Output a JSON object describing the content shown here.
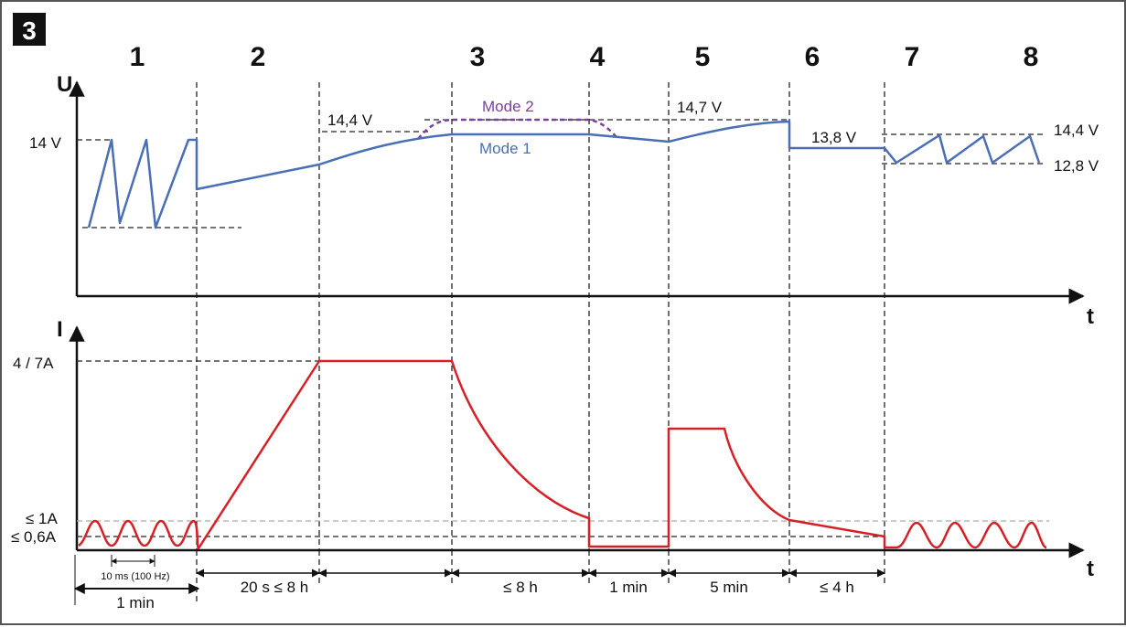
{
  "figure_number": "3",
  "phase_labels": [
    "1",
    "2",
    "3",
    "4",
    "5",
    "6",
    "7",
    "8"
  ],
  "voltage_axis_label": "U",
  "current_axis_label": "I",
  "time_axis_label": "t",
  "voltage_labels": {
    "v14": "14 V",
    "v144": "14,4 V",
    "v147": "14,7 V",
    "v138": "13,8 V",
    "v144_right": "14,4 V",
    "v128_right": "12,8 V",
    "mode1": "Mode 1",
    "mode2": "Mode 2"
  },
  "current_labels": {
    "max": "4 / 7A",
    "le1": "≤ 1A",
    "le06": "≤ 0,6A"
  },
  "durations": {
    "pulse": "10 ms (100 Hz)",
    "p1": "1 min",
    "p2": "20 s ≤ 8 h",
    "p3": "≤ 8 h",
    "p4": "1 min",
    "p5": "5 min",
    "p6": "≤ 4 h"
  },
  "colors": {
    "voltage": "#4a6fb5",
    "current": "#d62027",
    "mode2": "#7b3fa0",
    "axis": "#111111",
    "dash": "#222222",
    "grey_dash": "#aaaaaa"
  }
}
